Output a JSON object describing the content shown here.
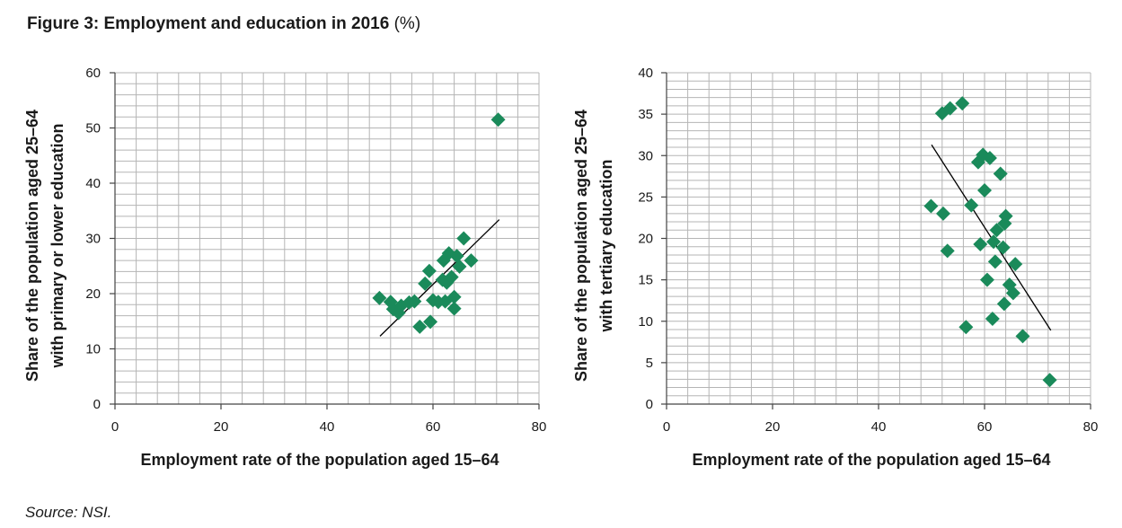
{
  "figure": {
    "title": "Figure 3: Employment and education in 2016",
    "title_unit": "(%)",
    "source": "Source: NSI."
  },
  "colors": {
    "marker": "#1a8a5a",
    "trend": "#000000",
    "grid": "#b5b5b5",
    "axis": "#444444"
  },
  "chart_data": [
    {
      "type": "scatter",
      "title": "",
      "xlabel": "Employment rate of the population aged 15–64",
      "ylabel": [
        "Share of the population aged 25–64",
        "with primary or lower education"
      ],
      "xlim": [
        0,
        80
      ],
      "ylim": [
        0,
        60
      ],
      "xticks": [
        0,
        20,
        40,
        60,
        80
      ],
      "yticks": [
        0,
        10,
        20,
        30,
        40,
        50,
        60
      ],
      "minor_grid": {
        "x_step": 4,
        "y_step": 2
      },
      "grid": true,
      "trendline": {
        "x": [
          50,
          72.5
        ],
        "y": [
          12.3,
          33.4
        ]
      },
      "points": [
        {
          "x": 49.9,
          "y": 19.2
        },
        {
          "x": 52.0,
          "y": 18.5
        },
        {
          "x": 52.5,
          "y": 17.2
        },
        {
          "x": 53.5,
          "y": 16.5
        },
        {
          "x": 54.0,
          "y": 17.8
        },
        {
          "x": 55.5,
          "y": 18.4
        },
        {
          "x": 56.5,
          "y": 18.6
        },
        {
          "x": 57.5,
          "y": 14.0
        },
        {
          "x": 58.5,
          "y": 21.8
        },
        {
          "x": 59.3,
          "y": 24.1
        },
        {
          "x": 59.5,
          "y": 14.9
        },
        {
          "x": 60.0,
          "y": 18.8
        },
        {
          "x": 61.0,
          "y": 18.5
        },
        {
          "x": 61.8,
          "y": 22.5
        },
        {
          "x": 62.0,
          "y": 26.0
        },
        {
          "x": 62.3,
          "y": 18.6
        },
        {
          "x": 62.6,
          "y": 22.0
        },
        {
          "x": 63.0,
          "y": 27.3
        },
        {
          "x": 63.5,
          "y": 23.0
        },
        {
          "x": 64.0,
          "y": 19.4
        },
        {
          "x": 64.0,
          "y": 17.3
        },
        {
          "x": 64.5,
          "y": 26.8
        },
        {
          "x": 65.0,
          "y": 24.9
        },
        {
          "x": 65.8,
          "y": 30.0
        },
        {
          "x": 67.2,
          "y": 26.0
        },
        {
          "x": 72.3,
          "y": 51.5
        }
      ]
    },
    {
      "type": "scatter",
      "title": "",
      "xlabel": "Employment rate of the population aged 15–64",
      "ylabel": [
        "Share of the population aged 25–64",
        "with tertiary education"
      ],
      "xlim": [
        0,
        80
      ],
      "ylim": [
        0,
        40
      ],
      "xticks": [
        0,
        20,
        40,
        60,
        80
      ],
      "yticks": [
        0,
        5,
        10,
        15,
        20,
        25,
        30,
        35,
        40
      ],
      "minor_grid": {
        "x_step": 4,
        "y_step": 1
      },
      "grid": true,
      "trendline": {
        "x": [
          50,
          72.5
        ],
        "y": [
          31.3,
          8.9
        ]
      },
      "points": [
        {
          "x": 49.9,
          "y": 23.9
        },
        {
          "x": 52.0,
          "y": 35.1
        },
        {
          "x": 52.2,
          "y": 23.0
        },
        {
          "x": 53.0,
          "y": 18.5
        },
        {
          "x": 53.5,
          "y": 35.7
        },
        {
          "x": 55.8,
          "y": 36.3
        },
        {
          "x": 56.5,
          "y": 9.3
        },
        {
          "x": 57.5,
          "y": 24.0
        },
        {
          "x": 58.8,
          "y": 29.2
        },
        {
          "x": 59.2,
          "y": 19.3
        },
        {
          "x": 59.7,
          "y": 30.1
        },
        {
          "x": 60.0,
          "y": 25.8
        },
        {
          "x": 60.5,
          "y": 15.0
        },
        {
          "x": 61.0,
          "y": 29.7
        },
        {
          "x": 61.5,
          "y": 10.3
        },
        {
          "x": 61.7,
          "y": 19.6
        },
        {
          "x": 62.0,
          "y": 17.2
        },
        {
          "x": 62.3,
          "y": 21.0
        },
        {
          "x": 63.0,
          "y": 27.8
        },
        {
          "x": 63.5,
          "y": 18.9
        },
        {
          "x": 63.8,
          "y": 21.8
        },
        {
          "x": 63.7,
          "y": 12.1
        },
        {
          "x": 64.0,
          "y": 22.7
        },
        {
          "x": 64.7,
          "y": 14.4
        },
        {
          "x": 65.4,
          "y": 13.4
        },
        {
          "x": 65.8,
          "y": 16.9
        },
        {
          "x": 67.2,
          "y": 8.2
        },
        {
          "x": 72.3,
          "y": 2.9
        }
      ]
    }
  ]
}
